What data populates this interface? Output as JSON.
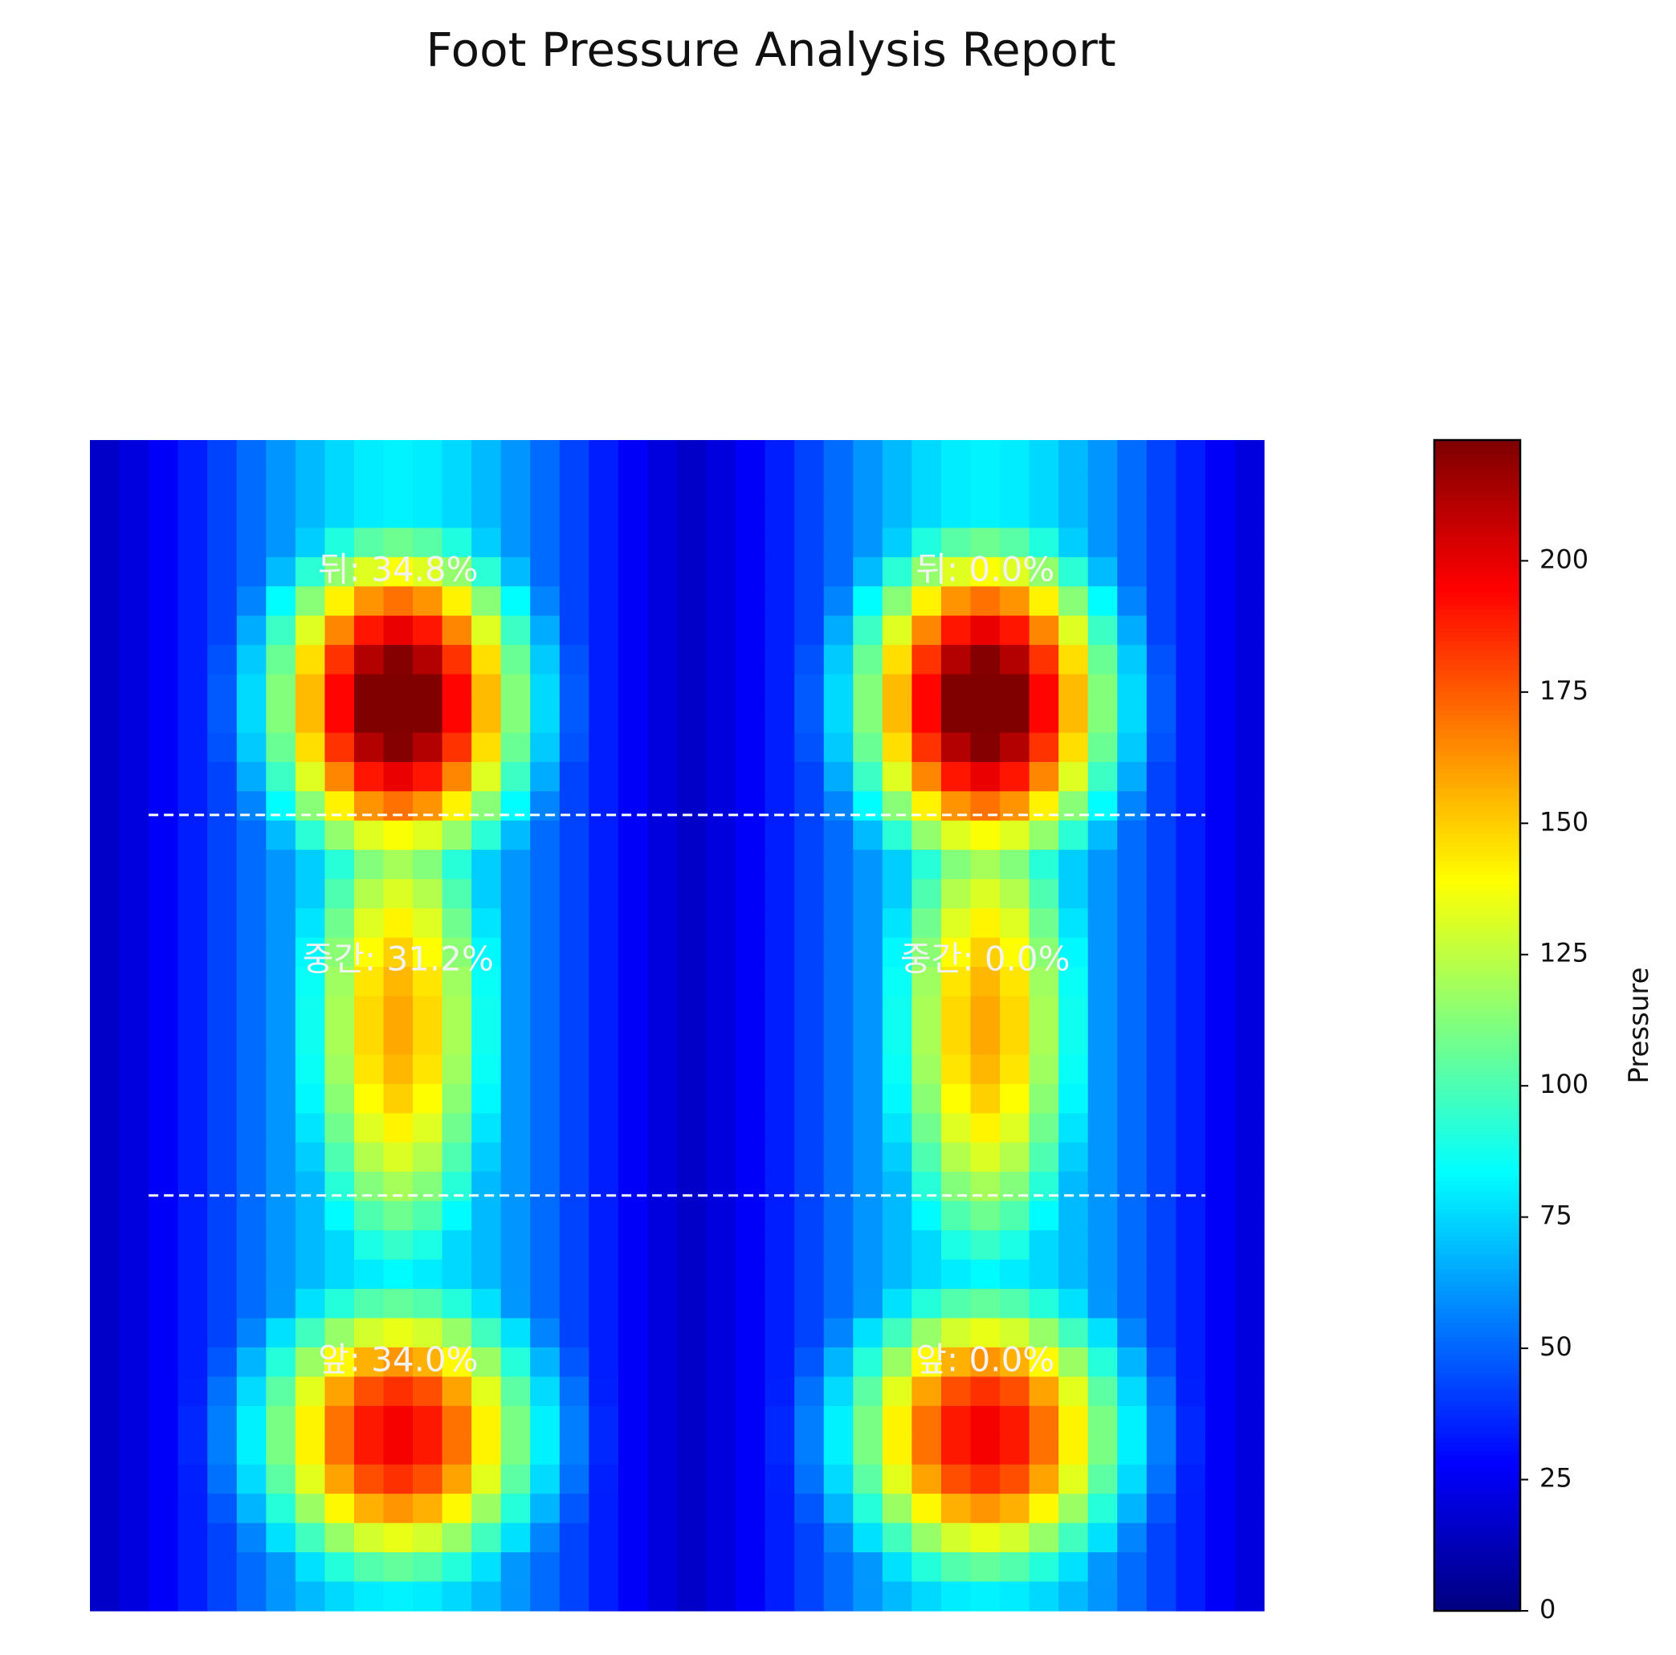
{
  "chart_data": {
    "type": "heatmap",
    "title": "Foot Pressure Analysis Report",
    "colormap": "jet",
    "colorbar": {
      "label": "Pressure",
      "range": [
        0,
        223
      ],
      "ticks": [
        0,
        25,
        50,
        75,
        100,
        125,
        150,
        175,
        200
      ]
    },
    "grid": {
      "rows": 40,
      "cols": 40
    },
    "feet": [
      {
        "name": "left",
        "col_range": [
          0,
          20
        ],
        "center_col": 10.5,
        "peaks": [
          {
            "region": "heel",
            "row": 9,
            "value": 222
          },
          {
            "region": "midfoot",
            "row": 20,
            "value": 145
          },
          {
            "region": "forefoot",
            "row": 34,
            "value": 185
          }
        ]
      },
      {
        "name": "right",
        "col_range": [
          20,
          40
        ],
        "center_col": 30.5,
        "peaks": [
          {
            "region": "heel",
            "row": 9,
            "value": 222
          },
          {
            "region": "midfoot",
            "row": 20,
            "value": 145
          },
          {
            "region": "forefoot",
            "row": 34,
            "value": 185
          }
        ]
      }
    ],
    "zone_boundaries_rows": [
      13,
      26
    ],
    "zone_labels": [
      {
        "text": "뒤: 34.8%",
        "region": "heel",
        "foot": "left"
      },
      {
        "text": "중간: 31.2%",
        "region": "midfoot",
        "foot": "left"
      },
      {
        "text": "앞: 34.0%",
        "region": "forefoot",
        "foot": "left"
      },
      {
        "text": "뒤: 0.0%",
        "region": "heel",
        "foot": "right"
      },
      {
        "text": "중간: 0.0%",
        "region": "midfoot",
        "foot": "right"
      },
      {
        "text": "앞: 0.0%",
        "region": "forefoot",
        "foot": "right"
      }
    ]
  }
}
